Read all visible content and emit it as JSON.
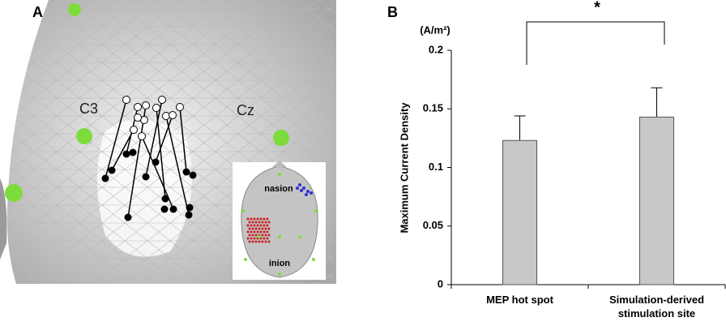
{
  "panel_a": {
    "label": "A",
    "electrode_left": "C3",
    "electrode_right": "Cz",
    "inset_top": "nasion",
    "inset_bottom": "inion"
  },
  "chart_data": {
    "type": "bar",
    "panel_label": "B",
    "unit_label": "(A/m²)",
    "y_label": "Maximum Current Density",
    "categories": [
      "MEP hot spot",
      "Simulation-derived stimulation site"
    ],
    "values": [
      0.123,
      0.143
    ],
    "errors": [
      0.021,
      0.025
    ],
    "color": "#c8c8c8",
    "ylim": [
      0,
      0.2
    ],
    "yticks": [
      0,
      0.05,
      0.1,
      0.15,
      0.2
    ],
    "significance": "*"
  }
}
